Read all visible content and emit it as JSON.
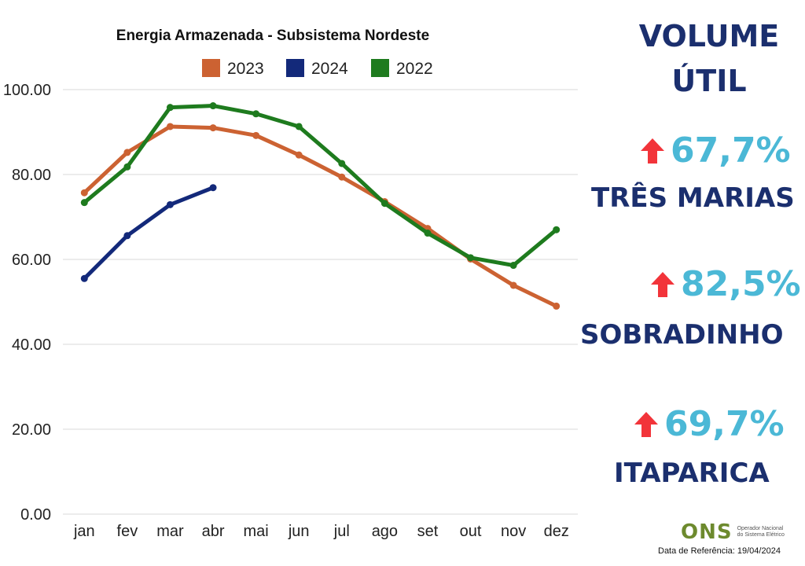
{
  "chart_data": {
    "type": "line",
    "title": "Energia Armazenada - Subsistema Nordeste",
    "categories": [
      "jan",
      "fev",
      "mar",
      "abr",
      "mai",
      "jun",
      "jul",
      "ago",
      "set",
      "out",
      "nov",
      "dez"
    ],
    "ylim": [
      0,
      100
    ],
    "yticks": [
      "0.00",
      "20.00",
      "40.00",
      "60.00",
      "80.00",
      "100.00"
    ],
    "series": [
      {
        "name": "2023",
        "color": "#cc6232",
        "values": [
          75.7,
          85.2,
          91.3,
          91.0,
          89.2,
          84.6,
          79.4,
          73.6,
          67.3,
          60.1,
          53.9,
          49.0
        ]
      },
      {
        "name": "2024",
        "color": "#13297a",
        "values": [
          55.5,
          65.6,
          72.9,
          76.9,
          null,
          null,
          null,
          null,
          null,
          null,
          null,
          null
        ]
      },
      {
        "name": "2022",
        "color": "#1e7b1e",
        "values": [
          73.4,
          81.8,
          95.8,
          96.2,
          94.3,
          91.3,
          82.6,
          73.2,
          66.2,
          60.4,
          58.6,
          67.0
        ]
      }
    ]
  },
  "side_panel": {
    "heading_line1": "VOLUME",
    "heading_line2": "ÚTIL",
    "reservoirs": [
      {
        "percent": "67,7%",
        "name": "TRÊS MARIAS"
      },
      {
        "percent": "82,5%",
        "name": "SOBRADINHO"
      },
      {
        "percent": "69,7%",
        "name": "ITAPARICA"
      }
    ],
    "arrow_color": "#f2343a"
  },
  "footer": {
    "logo_text": "ONS",
    "org_name_line1": "Operador Nacional",
    "org_name_line2": "do Sistema Elétrico",
    "reference_date": "Data de Referência: 19/04/2024"
  }
}
